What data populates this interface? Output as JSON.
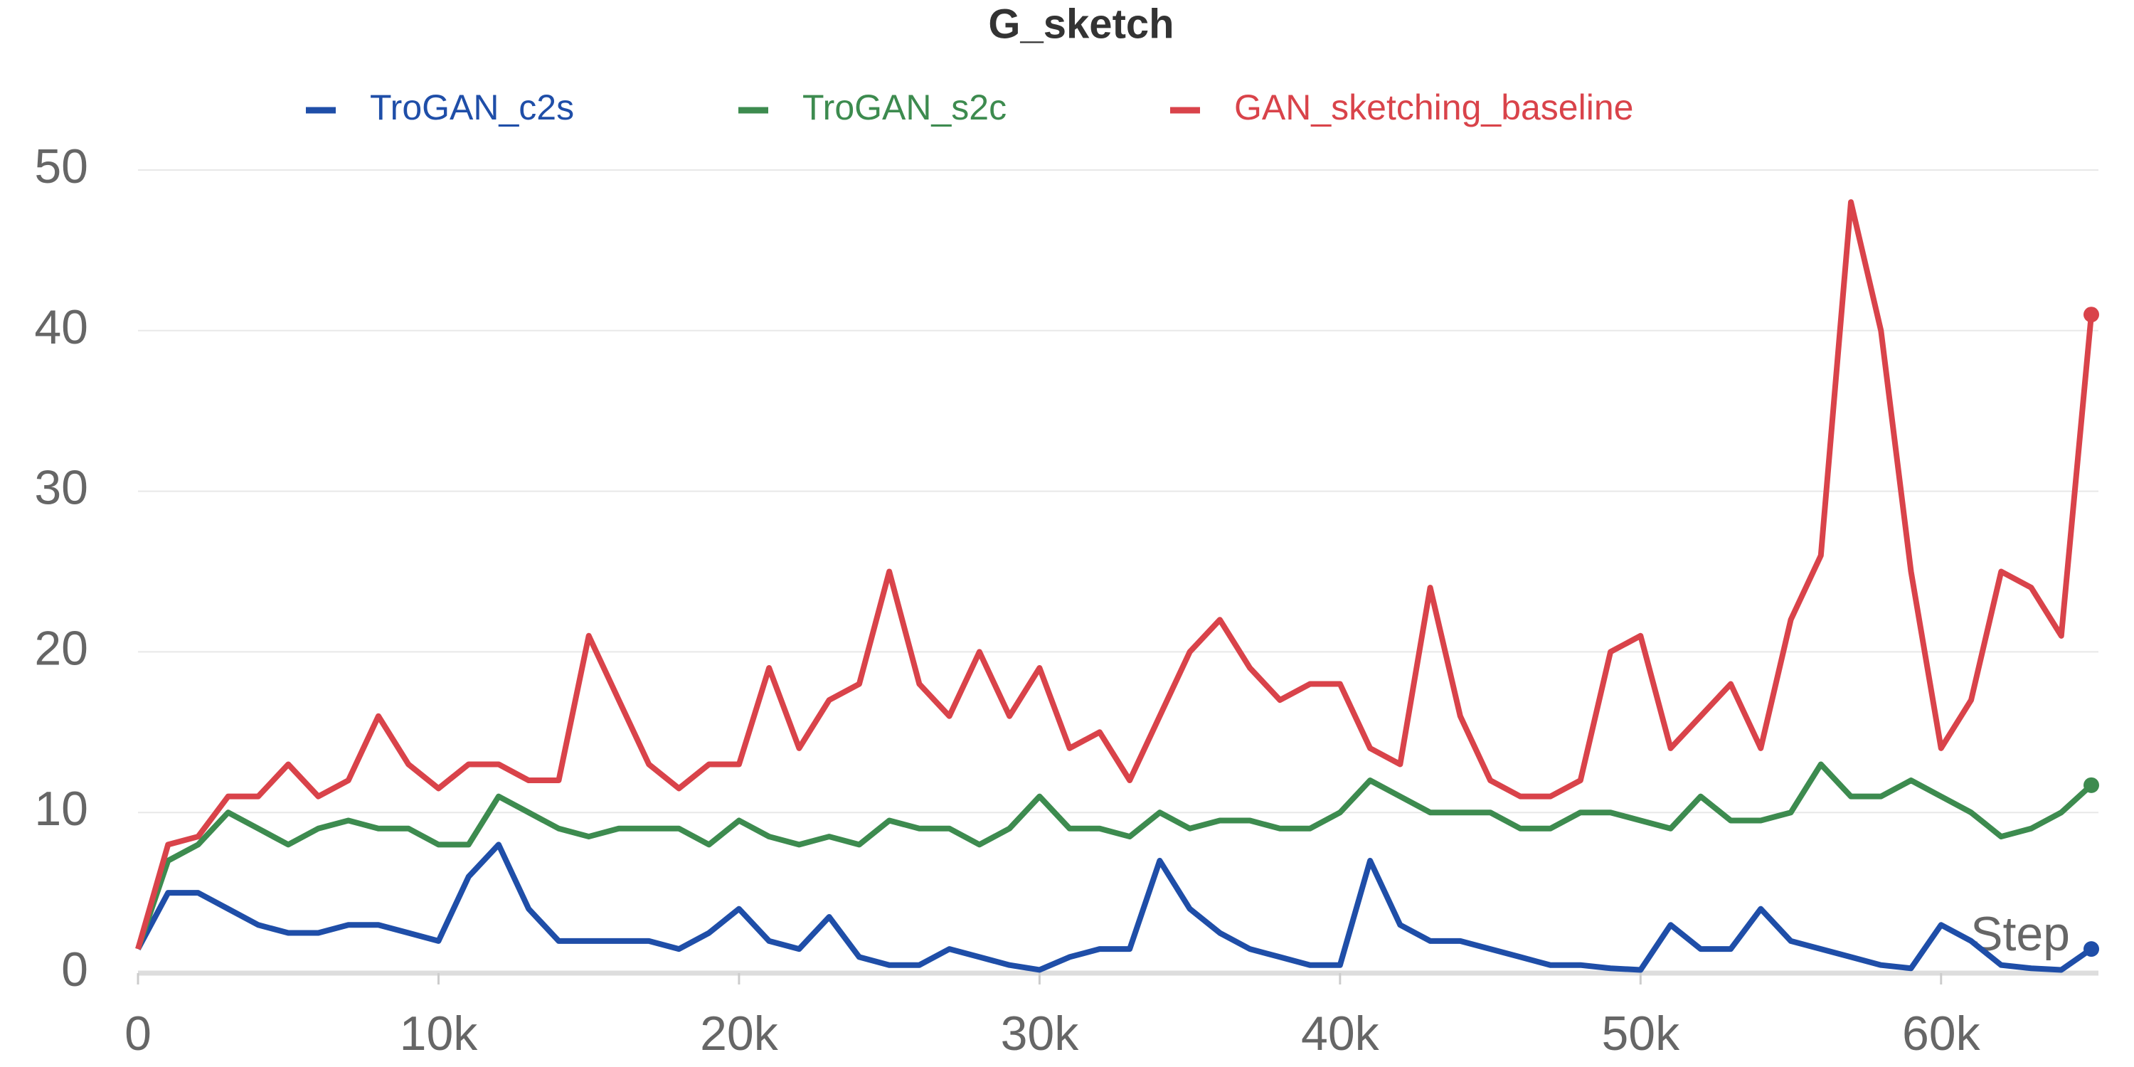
{
  "chart_data": {
    "type": "line",
    "title": "G_sketch",
    "x_label": "Step",
    "x": [
      0,
      1000,
      2000,
      3000,
      4000,
      5000,
      6000,
      7000,
      8000,
      9000,
      10000,
      11000,
      12000,
      13000,
      14000,
      15000,
      16000,
      17000,
      18000,
      19000,
      20000,
      21000,
      22000,
      23000,
      24000,
      25000,
      26000,
      27000,
      28000,
      29000,
      30000,
      31000,
      32000,
      33000,
      34000,
      35000,
      36000,
      37000,
      38000,
      39000,
      40000,
      41000,
      42000,
      43000,
      44000,
      45000,
      46000,
      47000,
      48000,
      49000,
      50000,
      51000,
      52000,
      53000,
      54000,
      55000,
      56000,
      57000,
      58000,
      59000,
      60000,
      61000,
      62000,
      63000,
      64000,
      65000
    ],
    "series": [
      {
        "name": "TroGAN_c2s",
        "color": "#1f4ea8",
        "values": [
          1.5,
          5,
          5,
          4,
          3,
          2.5,
          2.5,
          3,
          3,
          2.5,
          2,
          6,
          8,
          4,
          2,
          2,
          2,
          2,
          1.5,
          2.5,
          4,
          2,
          1.5,
          3.5,
          1,
          0.5,
          0.5,
          1.5,
          1,
          0.5,
          0.2,
          1,
          1.5,
          1.5,
          7,
          4,
          2.5,
          1.5,
          1,
          0.5,
          0.5,
          7,
          3,
          2,
          2,
          1.5,
          1,
          0.5,
          0.5,
          0.3,
          0.2,
          3,
          1.5,
          1.5,
          4,
          2,
          1.5,
          1,
          0.5,
          0.3,
          3,
          2,
          0.5,
          0.3,
          0.2,
          1.5
        ]
      },
      {
        "name": "TroGAN_s2c",
        "color": "#3d8b4f",
        "values": [
          1.5,
          7,
          8,
          10,
          9,
          8,
          9,
          9.5,
          9,
          9,
          8,
          8,
          11,
          10,
          9,
          8.5,
          9,
          9,
          9,
          8,
          9.5,
          8.5,
          8,
          8.5,
          8,
          9.5,
          9,
          9,
          8,
          9,
          11,
          9,
          9,
          8.5,
          10,
          9,
          9.5,
          9.5,
          9,
          9,
          10,
          12,
          11,
          10,
          10,
          10,
          9,
          9,
          10,
          10,
          9.5,
          9,
          11,
          9.5,
          9.5,
          10,
          13,
          11,
          11,
          12,
          11,
          10,
          8.5,
          9,
          10,
          11.7
        ]
      },
      {
        "name": "GAN_sketching_baseline",
        "color": "#d9434a",
        "values": [
          1.5,
          8,
          8.5,
          11,
          11,
          13,
          11,
          12,
          16,
          13,
          11.5,
          13,
          13,
          12,
          12,
          21,
          17,
          13,
          11.5,
          13,
          13,
          19,
          14,
          17,
          18,
          25,
          18,
          16,
          20,
          16,
          19,
          14,
          15,
          12,
          16,
          20,
          22,
          19,
          17,
          18,
          18,
          14,
          13,
          24,
          16,
          12,
          11,
          11,
          12,
          20,
          21,
          14,
          16,
          18,
          14,
          22,
          26,
          48,
          40,
          25,
          14,
          17,
          25,
          24,
          21,
          41
        ]
      }
    ],
    "xlim": [
      0,
      65000
    ],
    "xticks": [
      0,
      {
        "value": 10000,
        "label": "10k"
      },
      {
        "value": 20000,
        "label": "20k"
      },
      {
        "value": 30000,
        "label": "30k"
      },
      {
        "value": 40000,
        "label": "40k"
      },
      {
        "value": 50000,
        "label": "50k"
      },
      {
        "value": 60000,
        "label": "60k"
      }
    ],
    "ylim": [
      0,
      50
    ],
    "yticks": [
      0,
      10,
      20,
      30,
      40,
      50
    ],
    "grid": true
  }
}
